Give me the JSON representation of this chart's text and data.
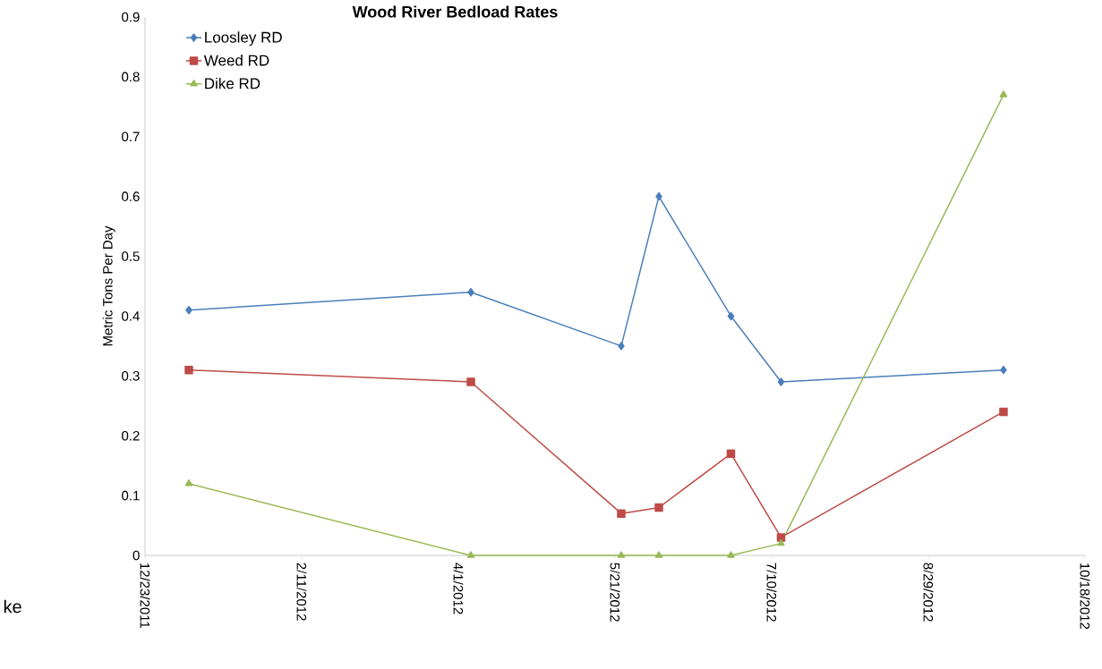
{
  "chart_data": {
    "type": "line",
    "title": "Wood River Bedload Rates",
    "ylabel": "Metric Tons Per Day",
    "x": [
      "2012-01-06",
      "2012-04-05",
      "2012-05-23",
      "2012-06-04",
      "2012-06-27",
      "2012-07-13",
      "2012-09-22"
    ],
    "series": [
      {
        "name": "Loosley RD",
        "color": "#4a7ebb",
        "marker": "diamond",
        "values": [
          0.41,
          0.44,
          0.35,
          0.6,
          0.4,
          0.29,
          0.31
        ]
      },
      {
        "name": "Weed RD",
        "color": "#be4b48",
        "marker": "square",
        "values": [
          0.31,
          0.29,
          0.07,
          0.08,
          0.17,
          0.03,
          0.24
        ]
      },
      {
        "name": "Dike RD",
        "color": "#98b954",
        "marker": "triangle",
        "values": [
          0.12,
          0,
          0,
          0,
          0,
          0.02,
          0.77
        ]
      }
    ],
    "xlim": [
      "2011-12-23",
      "2012-10-18"
    ],
    "xticks": [
      {
        "value": "2011-12-23",
        "label": "12/23/2011"
      },
      {
        "value": "2012-02-11",
        "label": "2/11/2012"
      },
      {
        "value": "2012-04-01",
        "label": "4/1/2012"
      },
      {
        "value": "2012-05-21",
        "label": "5/21/2012"
      },
      {
        "value": "2012-07-10",
        "label": "7/10/2012"
      },
      {
        "value": "2012-08-29",
        "label": "8/29/2012"
      },
      {
        "value": "2012-10-18",
        "label": "10/18/2012"
      }
    ],
    "ylim": [
      0,
      0.9
    ],
    "yticks": [
      0,
      0.1,
      0.2,
      0.3,
      0.4,
      0.5,
      0.6,
      0.7,
      0.8,
      0.9
    ],
    "grid": false,
    "legend": "top left",
    "line_style": "solid",
    "annotations": [
      "ke"
    ]
  }
}
